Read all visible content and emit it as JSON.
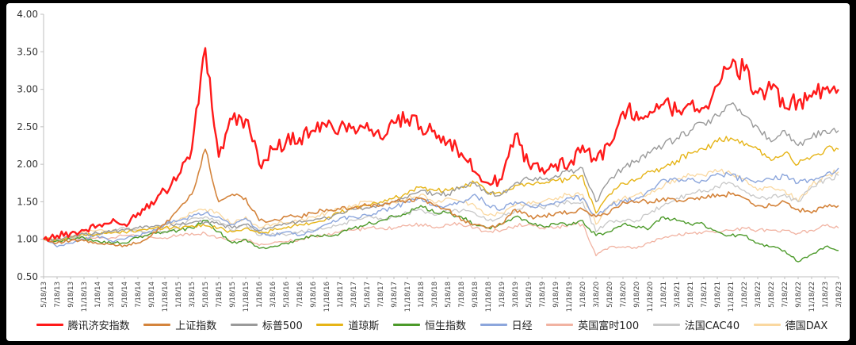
{
  "chart_data": {
    "type": "line",
    "x_ticks": [
      "5/18/13",
      "7/18/13",
      "9/18/13",
      "11/18/13",
      "1/18/14",
      "3/18/14",
      "5/18/14",
      "7/18/14",
      "9/18/14",
      "11/18/14",
      "1/18/15",
      "3/18/15",
      "5/18/15",
      "7/18/15",
      "9/18/15",
      "11/18/15",
      "1/18/16",
      "3/18/16",
      "5/18/16",
      "7/18/16",
      "9/18/16",
      "11/18/16",
      "1/18/17",
      "3/18/17",
      "5/18/17",
      "7/18/17",
      "9/18/17",
      "11/18/17",
      "1/18/18",
      "3/18/18",
      "5/18/18",
      "7/18/18",
      "9/18/18",
      "11/18/18",
      "1/18/19",
      "3/18/19",
      "5/18/19",
      "7/18/19",
      "9/18/19",
      "11/18/19",
      "1/18/20",
      "3/18/20",
      "5/18/20",
      "7/18/20",
      "9/18/20",
      "11/18/20",
      "1/18/21",
      "3/18/21",
      "5/18/21",
      "7/18/21",
      "9/18/21",
      "11/18/21",
      "1/18/22",
      "3/18/22",
      "5/18/22",
      "7/18/22",
      "9/18/22",
      "11/18/22",
      "1/18/23",
      "3/18/23"
    ],
    "y_ticks": [
      "0.50",
      "1.00",
      "1.50",
      "2.00",
      "2.50",
      "3.00",
      "3.50",
      "4.00"
    ],
    "ylim": [
      0.5,
      4.0
    ],
    "grid": false,
    "legend_position": "bottom",
    "series": [
      {
        "name": "腾讯济安指数",
        "color": "#ff1a1a",
        "width": 2.4,
        "values": [
          1.0,
          1.05,
          1.08,
          1.12,
          1.18,
          1.22,
          1.2,
          1.35,
          1.5,
          1.65,
          1.85,
          2.2,
          3.55,
          2.1,
          2.6,
          2.6,
          2.0,
          2.2,
          2.3,
          2.35,
          2.45,
          2.5,
          2.5,
          2.5,
          2.55,
          2.35,
          2.55,
          2.6,
          2.5,
          2.45,
          2.3,
          2.15,
          1.9,
          1.75,
          1.8,
          2.4,
          2.0,
          1.95,
          2.0,
          2.0,
          2.25,
          2.05,
          2.25,
          2.7,
          2.7,
          2.7,
          2.8,
          2.7,
          2.8,
          2.75,
          3.05,
          3.3,
          3.25,
          2.95,
          3.0,
          2.75,
          2.85,
          2.9,
          3.0,
          3.0
        ]
      },
      {
        "name": "上证指数",
        "color": "#d4843c",
        "width": 1.6,
        "values": [
          1.0,
          0.95,
          0.98,
          0.98,
          0.94,
          0.93,
          0.92,
          0.95,
          1.05,
          1.2,
          1.4,
          1.6,
          2.2,
          1.5,
          1.6,
          1.55,
          1.25,
          1.25,
          1.3,
          1.3,
          1.35,
          1.4,
          1.4,
          1.42,
          1.45,
          1.45,
          1.5,
          1.52,
          1.55,
          1.45,
          1.4,
          1.25,
          1.2,
          1.15,
          1.2,
          1.4,
          1.3,
          1.3,
          1.35,
          1.35,
          1.4,
          1.3,
          1.35,
          1.5,
          1.5,
          1.5,
          1.55,
          1.5,
          1.55,
          1.55,
          1.6,
          1.6,
          1.55,
          1.45,
          1.45,
          1.5,
          1.4,
          1.35,
          1.45,
          1.45
        ]
      },
      {
        "name": "标普500",
        "color": "#9a9a9a",
        "width": 1.4,
        "values": [
          1.0,
          1.0,
          1.03,
          1.07,
          1.08,
          1.1,
          1.12,
          1.15,
          1.17,
          1.2,
          1.2,
          1.22,
          1.23,
          1.2,
          1.15,
          1.2,
          1.12,
          1.15,
          1.2,
          1.25,
          1.25,
          1.28,
          1.35,
          1.4,
          1.42,
          1.45,
          1.5,
          1.55,
          1.65,
          1.6,
          1.6,
          1.7,
          1.75,
          1.6,
          1.6,
          1.75,
          1.8,
          1.8,
          1.85,
          1.9,
          1.95,
          1.5,
          1.8,
          1.95,
          2.05,
          2.15,
          2.25,
          2.35,
          2.45,
          2.55,
          2.65,
          2.8,
          2.65,
          2.5,
          2.3,
          2.45,
          2.25,
          2.35,
          2.45,
          2.45
        ]
      },
      {
        "name": "道琼斯",
        "color": "#e6b417",
        "width": 1.4,
        "values": [
          1.0,
          1.0,
          1.03,
          1.06,
          1.07,
          1.08,
          1.1,
          1.12,
          1.14,
          1.16,
          1.15,
          1.18,
          1.18,
          1.15,
          1.1,
          1.15,
          1.08,
          1.12,
          1.15,
          1.2,
          1.22,
          1.28,
          1.35,
          1.42,
          1.45,
          1.5,
          1.55,
          1.6,
          1.7,
          1.65,
          1.65,
          1.7,
          1.75,
          1.62,
          1.6,
          1.72,
          1.75,
          1.75,
          1.78,
          1.8,
          1.85,
          1.35,
          1.6,
          1.75,
          1.8,
          1.9,
          1.95,
          2.05,
          2.15,
          2.2,
          2.3,
          2.35,
          2.25,
          2.2,
          2.05,
          2.15,
          2.0,
          2.1,
          2.2,
          2.2
        ]
      },
      {
        "name": "恒生指数",
        "color": "#4c9a2a",
        "width": 1.4,
        "values": [
          1.0,
          0.98,
          1.0,
          1.02,
          0.98,
          0.95,
          0.95,
          1.02,
          1.08,
          1.1,
          1.12,
          1.15,
          1.25,
          1.1,
          0.95,
          1.0,
          0.88,
          0.9,
          0.95,
          1.0,
          1.05,
          1.05,
          1.08,
          1.15,
          1.2,
          1.25,
          1.3,
          1.35,
          1.45,
          1.35,
          1.35,
          1.3,
          1.2,
          1.15,
          1.2,
          1.3,
          1.22,
          1.18,
          1.2,
          1.2,
          1.25,
          1.05,
          1.1,
          1.2,
          1.15,
          1.15,
          1.3,
          1.25,
          1.2,
          1.2,
          1.1,
          1.05,
          1.05,
          0.95,
          0.9,
          0.85,
          0.7,
          0.8,
          0.9,
          0.85
        ]
      },
      {
        "name": "日经",
        "color": "#8ca6dc",
        "width": 1.4,
        "values": [
          1.0,
          0.9,
          0.95,
          1.0,
          1.05,
          0.98,
          1.0,
          1.05,
          1.1,
          1.2,
          1.25,
          1.3,
          1.35,
          1.3,
          1.2,
          1.28,
          1.1,
          1.05,
          1.1,
          1.05,
          1.1,
          1.2,
          1.28,
          1.3,
          1.32,
          1.38,
          1.42,
          1.5,
          1.55,
          1.45,
          1.45,
          1.5,
          1.6,
          1.45,
          1.4,
          1.5,
          1.45,
          1.45,
          1.5,
          1.55,
          1.55,
          1.3,
          1.45,
          1.5,
          1.55,
          1.65,
          1.8,
          1.8,
          1.8,
          1.78,
          1.88,
          1.85,
          1.8,
          1.78,
          1.8,
          1.85,
          1.75,
          1.8,
          1.85,
          1.95
        ]
      },
      {
        "name": "英国富时100",
        "color": "#f1b3a2",
        "width": 1.3,
        "values": [
          1.0,
          0.98,
          1.0,
          1.02,
          1.03,
          1.02,
          1.05,
          1.05,
          1.03,
          1.02,
          1.05,
          1.08,
          1.08,
          1.02,
          0.98,
          1.0,
          0.92,
          0.95,
          0.97,
          1.0,
          1.05,
          1.05,
          1.1,
          1.12,
          1.15,
          1.15,
          1.15,
          1.18,
          1.2,
          1.15,
          1.2,
          1.2,
          1.15,
          1.1,
          1.12,
          1.18,
          1.2,
          1.15,
          1.15,
          1.2,
          1.2,
          0.78,
          0.9,
          0.9,
          0.88,
          0.95,
          1.02,
          1.05,
          1.08,
          1.1,
          1.1,
          1.12,
          1.15,
          1.12,
          1.12,
          1.12,
          1.08,
          1.12,
          1.18,
          1.15
        ]
      },
      {
        "name": "法国CAC40",
        "color": "#c8c8c8",
        "width": 1.3,
        "values": [
          1.0,
          0.98,
          1.02,
          1.05,
          1.08,
          1.1,
          1.15,
          1.1,
          1.08,
          1.1,
          1.15,
          1.28,
          1.3,
          1.25,
          1.12,
          1.2,
          1.05,
          1.08,
          1.05,
          1.1,
          1.12,
          1.15,
          1.2,
          1.25,
          1.3,
          1.28,
          1.3,
          1.35,
          1.4,
          1.32,
          1.4,
          1.38,
          1.35,
          1.25,
          1.3,
          1.38,
          1.45,
          1.42,
          1.45,
          1.5,
          1.5,
          1.1,
          1.25,
          1.25,
          1.25,
          1.35,
          1.45,
          1.55,
          1.6,
          1.65,
          1.7,
          1.75,
          1.65,
          1.55,
          1.55,
          1.6,
          1.5,
          1.7,
          1.8,
          1.85
        ]
      },
      {
        "name": "德国DAX",
        "color": "#fad8a0",
        "width": 1.3,
        "values": [
          1.0,
          1.0,
          1.05,
          1.1,
          1.12,
          1.1,
          1.15,
          1.12,
          1.1,
          1.15,
          1.25,
          1.35,
          1.4,
          1.35,
          1.2,
          1.3,
          1.15,
          1.2,
          1.22,
          1.25,
          1.3,
          1.35,
          1.4,
          1.45,
          1.5,
          1.45,
          1.5,
          1.55,
          1.6,
          1.48,
          1.55,
          1.5,
          1.45,
          1.32,
          1.35,
          1.45,
          1.5,
          1.5,
          1.55,
          1.6,
          1.6,
          1.2,
          1.45,
          1.55,
          1.6,
          1.6,
          1.7,
          1.8,
          1.85,
          1.85,
          1.9,
          1.88,
          1.8,
          1.65,
          1.7,
          1.65,
          1.5,
          1.72,
          1.85,
          1.9
        ]
      }
    ]
  }
}
